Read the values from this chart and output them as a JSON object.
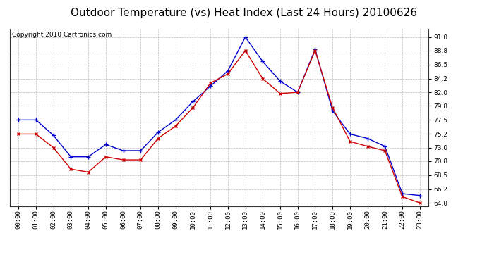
{
  "title": "Outdoor Temperature (vs) Heat Index (Last 24 Hours) 20100626",
  "copyright": "Copyright 2010 Cartronics.com",
  "x_labels": [
    "00:00",
    "01:00",
    "02:00",
    "03:00",
    "04:00",
    "05:00",
    "06:00",
    "07:00",
    "08:00",
    "09:00",
    "10:00",
    "11:00",
    "12:00",
    "13:00",
    "14:00",
    "15:00",
    "16:00",
    "17:00",
    "18:00",
    "19:00",
    "20:00",
    "21:00",
    "22:00",
    "23:00"
  ],
  "temp_blue": [
    77.5,
    77.5,
    75.0,
    71.5,
    71.5,
    73.5,
    72.5,
    72.5,
    75.5,
    77.5,
    80.5,
    83.0,
    85.5,
    91.0,
    87.0,
    83.8,
    82.0,
    89.0,
    79.0,
    75.2,
    74.5,
    73.2,
    65.5,
    65.2
  ],
  "heat_red": [
    75.2,
    75.2,
    73.0,
    69.5,
    69.0,
    71.5,
    71.0,
    71.0,
    74.5,
    76.5,
    79.5,
    83.5,
    85.0,
    88.8,
    84.2,
    81.8,
    82.0,
    88.8,
    79.5,
    74.0,
    73.2,
    72.5,
    65.0,
    64.0
  ],
  "blue_color": "#0000cc",
  "red_color": "#cc0000",
  "ylim_min": 63.5,
  "ylim_max": 92.3,
  "yticks": [
    64.0,
    66.2,
    68.5,
    70.8,
    73.0,
    75.2,
    77.5,
    79.8,
    82.0,
    84.2,
    86.5,
    88.8,
    91.0
  ],
  "background_color": "#ffffff",
  "grid_color": "#bbbbbb",
  "title_fontsize": 11,
  "copyright_fontsize": 6.5
}
